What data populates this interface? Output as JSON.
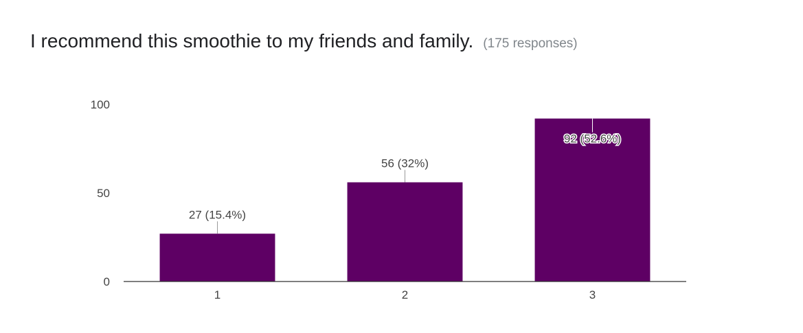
{
  "header": {
    "title": "I recommend this smoothie to my friends and family.",
    "subtitle": "(175 responses)"
  },
  "colors": {
    "bar": "#5e0064",
    "axis": "#333333",
    "label": "#444444"
  },
  "chart_data": {
    "type": "bar",
    "categories": [
      "1",
      "2",
      "3"
    ],
    "values": [
      27,
      56,
      92
    ],
    "data_labels": [
      "27 (15.4%)",
      "56 (32%)",
      "92 (52.6%)"
    ],
    "y_ticks": [
      "0",
      "50",
      "100"
    ],
    "ylim": [
      0,
      100
    ],
    "grid": false,
    "legend": "none"
  }
}
